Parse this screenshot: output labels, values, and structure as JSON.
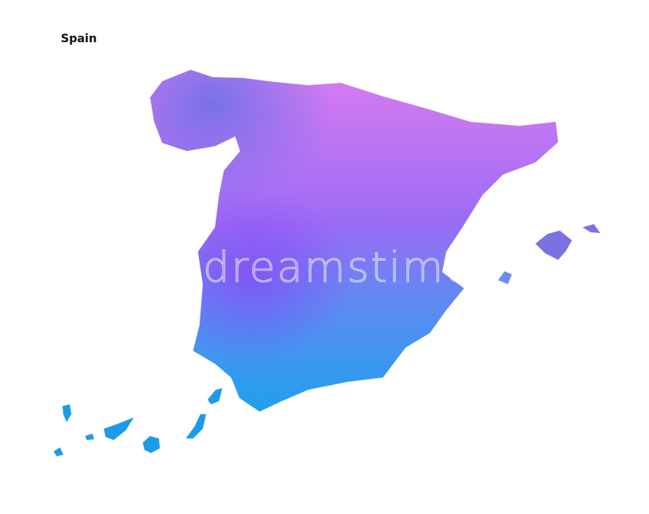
{
  "title": "Spain",
  "watermark": "dreamstime",
  "map": {
    "region": "Spain",
    "style": "watercolor",
    "colors": {
      "north": "#d97cf0",
      "northwest": "#7d6fe8",
      "center": "#9a6cf5",
      "south": "#20a0ee",
      "islands": "#1c9be8",
      "balearics": "#7a72e0"
    }
  }
}
